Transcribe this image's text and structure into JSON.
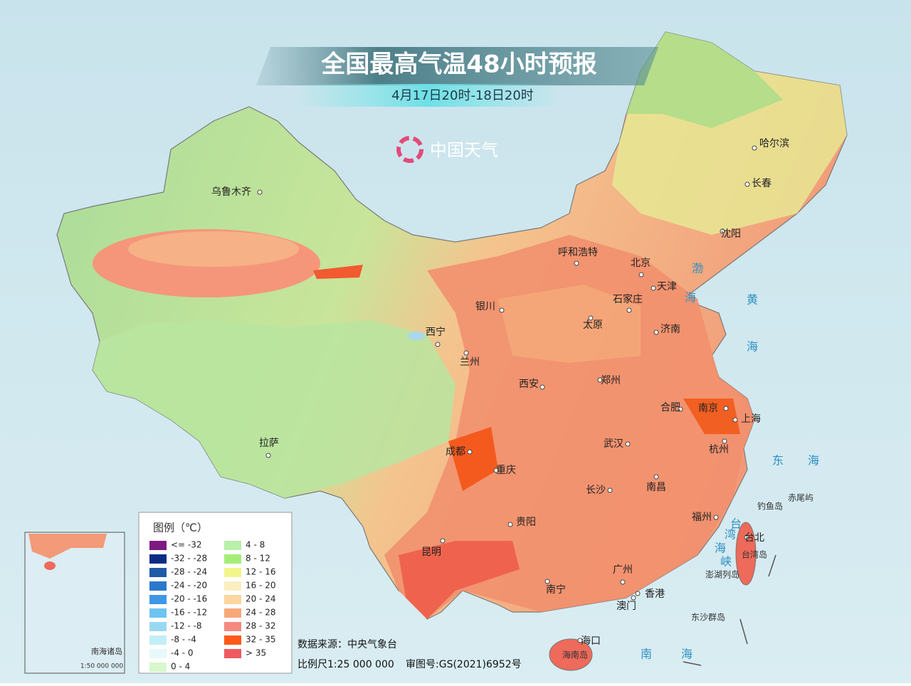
{
  "header": {
    "title": "全国最高气温48小时预报",
    "subtitle": "4月17日20时-18日20时",
    "brand": "中国天气"
  },
  "cities": [
    {
      "label": "乌鲁木齐"
    },
    {
      "label": "呼和浩特"
    },
    {
      "label": "北京"
    },
    {
      "label": "天津"
    },
    {
      "label": "石家庄"
    },
    {
      "label": "太原"
    },
    {
      "label": "济南"
    },
    {
      "label": "银川"
    },
    {
      "label": "西宁"
    },
    {
      "label": "兰州"
    },
    {
      "label": "西安"
    },
    {
      "label": "郑州"
    },
    {
      "label": "合肥"
    },
    {
      "label": "南京"
    },
    {
      "label": "上海"
    },
    {
      "label": "杭州"
    },
    {
      "label": "成都"
    },
    {
      "label": "重庆"
    },
    {
      "label": "武汉"
    },
    {
      "label": "长沙"
    },
    {
      "label": "南昌"
    },
    {
      "label": "拉萨"
    },
    {
      "label": "贵阳"
    },
    {
      "label": "昆明"
    },
    {
      "label": "福州"
    },
    {
      "label": "台北"
    },
    {
      "label": "广州"
    },
    {
      "label": "香港"
    },
    {
      "label": "澳门"
    },
    {
      "label": "南宁"
    },
    {
      "label": "海口"
    },
    {
      "label": "哈尔滨"
    },
    {
      "label": "长春"
    },
    {
      "label": "沈阳"
    }
  ],
  "islands": [
    {
      "label": "钓鱼岛"
    },
    {
      "label": "赤尾屿"
    },
    {
      "label": "台湾岛"
    },
    {
      "label": "澎湖列岛"
    },
    {
      "label": "东沙群岛"
    },
    {
      "label": "海南岛"
    }
  ],
  "seas": [
    {
      "label": "渤"
    },
    {
      "label": "海"
    },
    {
      "label": "黄"
    },
    {
      "label": "海"
    },
    {
      "label": "东"
    },
    {
      "label": "海"
    },
    {
      "label": "台"
    },
    {
      "label": "湾"
    },
    {
      "label": "海"
    },
    {
      "label": "峡"
    },
    {
      "label": "南"
    },
    {
      "label": "海"
    }
  ],
  "legend": {
    "title": "图例（℃）",
    "items": [
      {
        "label": "<= -32",
        "color": "#7d1a82"
      },
      {
        "label": "-32 - -28",
        "color": "#0a2c84"
      },
      {
        "label": "-28 - -24",
        "color": "#1f5aa6"
      },
      {
        "label": "-24 - -20",
        "color": "#2a78cc"
      },
      {
        "label": "-20 - -16",
        "color": "#3d97e6"
      },
      {
        "label": "-16 - -12",
        "color": "#6ec4f0"
      },
      {
        "label": "-12 - -8",
        "color": "#9ad8f2"
      },
      {
        "label": "-8 - -4",
        "color": "#c2eef8"
      },
      {
        "label": "-4 - 0",
        "color": "#e6f9fc"
      },
      {
        "label": "0 - 4",
        "color": "#d8f7cc"
      },
      {
        "label": "4 - 8",
        "color": "#b8f0a8"
      },
      {
        "label": "8 - 12",
        "color": "#a4ee78"
      },
      {
        "label": "12 - 16",
        "color": "#f2f58a"
      },
      {
        "label": "16 - 20",
        "color": "#fbeec0"
      },
      {
        "label": "20 - 24",
        "color": "#fbd6a0"
      },
      {
        "label": "24 - 28",
        "color": "#f8a878"
      },
      {
        "label": "28 - 32",
        "color": "#f58a80"
      },
      {
        "label": "32 - 35",
        "color": "#ff5a18"
      },
      {
        "label": "> 35",
        "color": "#ee5a60"
      }
    ]
  },
  "footer": {
    "source": "数据来源：中央气象台",
    "scale": "比例尺1:25 000 000",
    "review": "审图号:GS(2021)6952号"
  },
  "inset": {
    "label": "南海诸岛",
    "scale": "1:50 000 000"
  }
}
